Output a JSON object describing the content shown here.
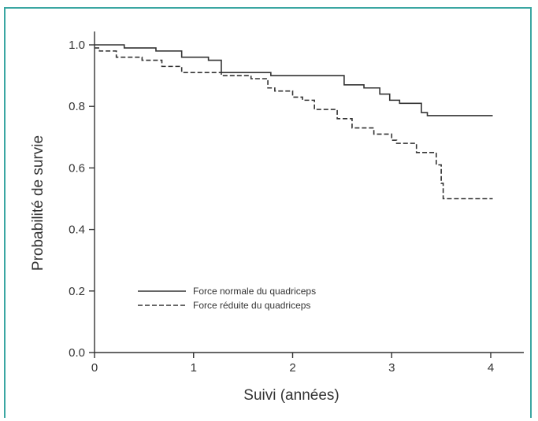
{
  "chart_data": {
    "type": "line",
    "step": true,
    "xlabel": "Suivi (années)",
    "ylabel": "Probabilité de survie",
    "xlim": [
      0,
      4.3
    ],
    "ylim": [
      0,
      1.05
    ],
    "xticks": [
      "0",
      "1",
      "2",
      "3",
      "4"
    ],
    "yticks": [
      "0.0",
      "0.2",
      "0.4",
      "0.6",
      "0.8",
      "1.0"
    ],
    "grid": false,
    "legend_position": "bottom-left",
    "colors": {
      "axis": "#333333",
      "line": "#333333",
      "frame": "#3aa6a2"
    },
    "series": [
      {
        "name": "Force normale du quadriceps",
        "style": "solid",
        "x": [
          0,
          0.05,
          0.3,
          0.62,
          0.88,
          1.15,
          1.28,
          1.78,
          2.52,
          2.6,
          2.72,
          2.88,
          2.98,
          3.08,
          3.3,
          3.36,
          4.02
        ],
        "y": [
          1.0,
          1.0,
          0.99,
          0.98,
          0.96,
          0.95,
          0.91,
          0.9,
          0.87,
          0.87,
          0.86,
          0.84,
          0.82,
          0.81,
          0.78,
          0.77,
          0.77
        ]
      },
      {
        "name": "Force réduite du quadriceps",
        "style": "dashed",
        "x": [
          0,
          0.05,
          0.22,
          0.48,
          0.68,
          0.88,
          1.28,
          1.58,
          1.75,
          1.82,
          2.0,
          2.1,
          2.22,
          2.45,
          2.6,
          2.82,
          3.0,
          3.05,
          3.25,
          3.45,
          3.5,
          3.52,
          4.02
        ],
        "y": [
          0.99,
          0.98,
          0.96,
          0.95,
          0.93,
          0.91,
          0.9,
          0.89,
          0.86,
          0.85,
          0.83,
          0.82,
          0.79,
          0.76,
          0.73,
          0.71,
          0.69,
          0.68,
          0.65,
          0.61,
          0.55,
          0.5,
          0.5
        ]
      }
    ]
  }
}
